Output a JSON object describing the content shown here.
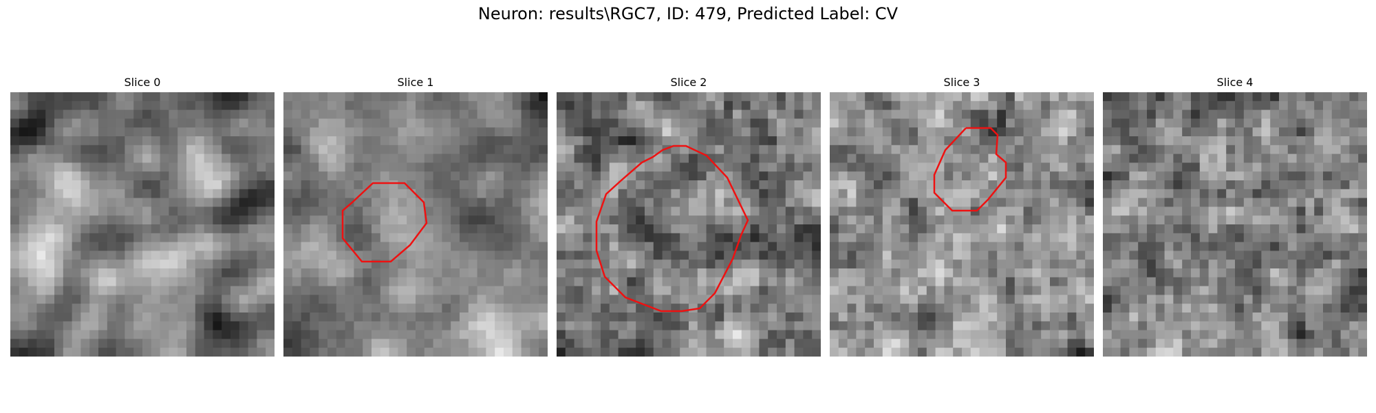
{
  "figure": {
    "title": "Neuron: results\\RGC7, ID: 479, Predicted Label: CV"
  },
  "contour_color": "#ee1111",
  "panels": [
    {
      "title": "Slice 0"
    },
    {
      "title": "Slice 1"
    },
    {
      "title": "Slice 2"
    },
    {
      "title": "Slice 3"
    },
    {
      "title": "Slice 4"
    }
  ]
}
